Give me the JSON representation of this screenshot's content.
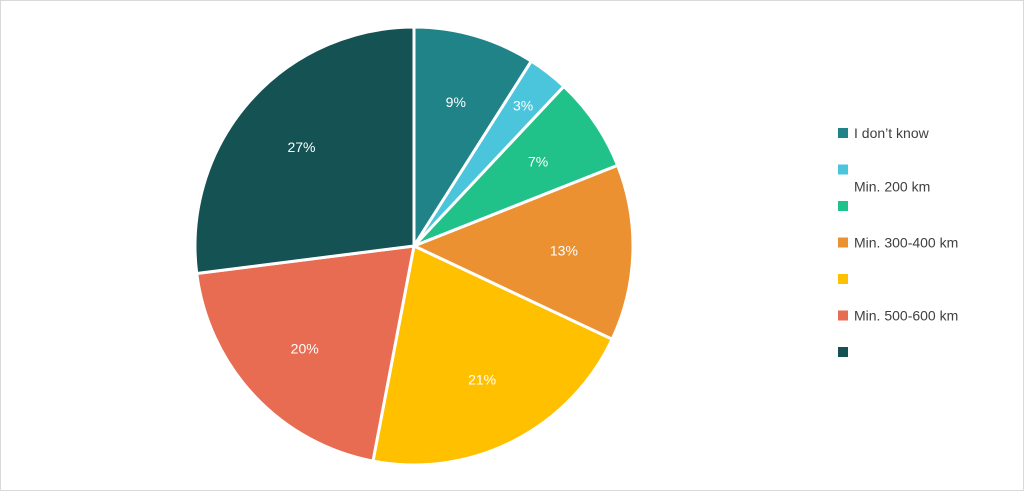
{
  "chart_data": {
    "type": "pie",
    "title": "",
    "start_angle_deg": 0,
    "direction": "clockwise",
    "legend_position": "right",
    "slices": [
      {
        "label": "I don’t know",
        "value": 9,
        "display": "9%",
        "color": "#1F8387"
      },
      {
        "label": "Min. 200 km",
        "value": 3,
        "display": "3%",
        "color": "#4BC5DC"
      },
      {
        "label": "",
        "value": 7,
        "display": "7%",
        "color": "#20C28A"
      },
      {
        "label": "Min. 300-400 km",
        "value": 13,
        "display": "13%",
        "color": "#EC9131"
      },
      {
        "label": "",
        "value": 21,
        "display": "21%",
        "color": "#FFC000"
      },
      {
        "label": "Min. 500-600 km",
        "value": 20,
        "display": "20%",
        "color": "#E86C52"
      },
      {
        "label": "",
        "value": 27,
        "display": "27%",
        "color": "#145254"
      }
    ]
  }
}
